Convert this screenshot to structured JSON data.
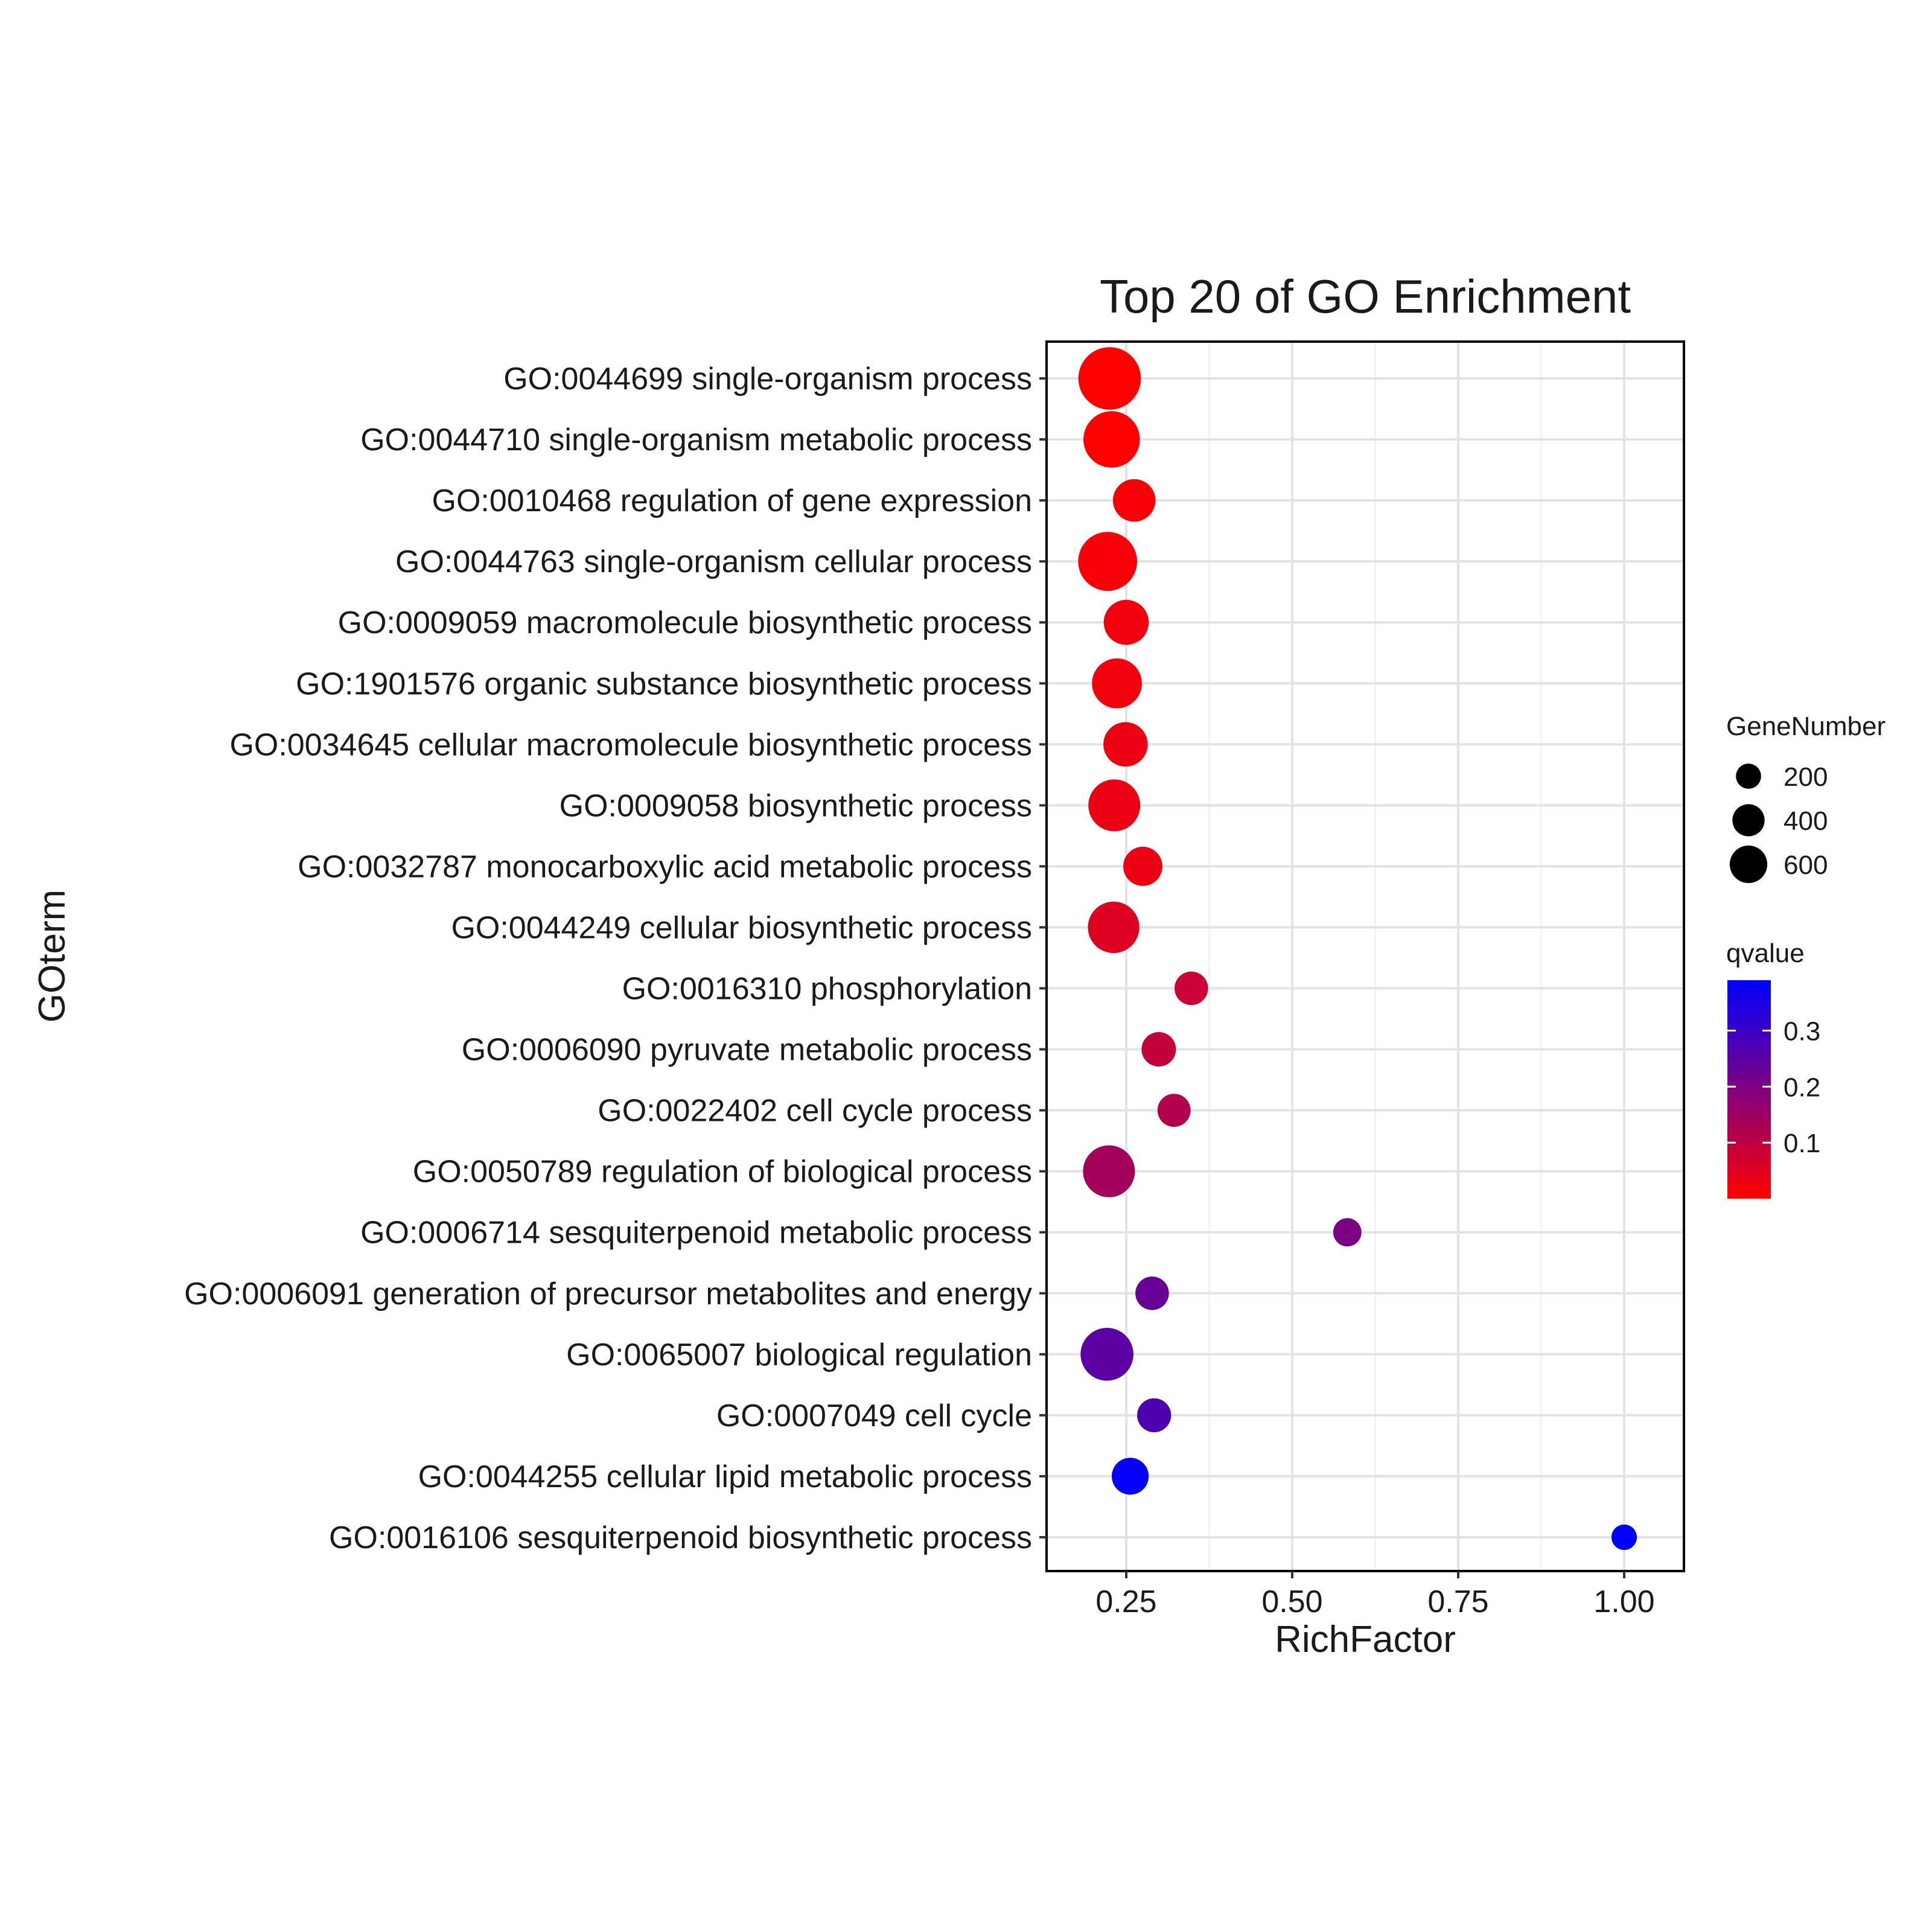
{
  "chart_data": {
    "type": "scatter",
    "title": "Top 20 of GO Enrichment",
    "xlabel": "RichFactor",
    "ylabel": "GOterm",
    "xlim": [
      0.13,
      1.09
    ],
    "xticks": [
      0.25,
      0.5,
      0.75,
      1.0
    ],
    "xtick_labels": [
      "0.25",
      "0.50",
      "0.75",
      "1.00"
    ],
    "grid": true,
    "terms": [
      "GO:0044699 single-organism process",
      "GO:0044710 single-organism metabolic process",
      "GO:0010468 regulation of gene expression",
      "GO:0044763 single-organism cellular process",
      "GO:0009059 macromolecule biosynthetic process",
      "GO:1901576 organic substance biosynthetic process",
      "GO:0034645 cellular macromolecule biosynthetic process",
      "GO:0009058 biosynthetic process",
      "GO:0032787 monocarboxylic acid metabolic process",
      "GO:0044249 cellular biosynthetic process",
      "GO:0016310 phosphorylation",
      "GO:0006090 pyruvate metabolic process",
      "GO:0022402 cell cycle process",
      "GO:0050789 regulation of biological process",
      "GO:0006714 sesquiterpenoid metabolic process",
      "GO:0006091 generation of precursor metabolites and energy",
      "GO:0065007 biological regulation",
      "GO:0007049 cell cycle",
      "GO:0044255 cellular lipid metabolic process",
      "GO:0016106 sesquiterpenoid biosynthetic process"
    ],
    "points": [
      {
        "richFactor": 0.225,
        "geneNumber": 650,
        "qvalue": 0.0
      },
      {
        "richFactor": 0.228,
        "geneNumber": 500,
        "qvalue": 0.0
      },
      {
        "richFactor": 0.262,
        "geneNumber": 230,
        "qvalue": 0.01
      },
      {
        "richFactor": 0.222,
        "geneNumber": 560,
        "qvalue": 0.01
      },
      {
        "richFactor": 0.25,
        "geneNumber": 270,
        "qvalue": 0.02
      },
      {
        "richFactor": 0.236,
        "geneNumber": 360,
        "qvalue": 0.02
      },
      {
        "richFactor": 0.249,
        "geneNumber": 260,
        "qvalue": 0.03
      },
      {
        "richFactor": 0.232,
        "geneNumber": 400,
        "qvalue": 0.03
      },
      {
        "richFactor": 0.275,
        "geneNumber": 180,
        "qvalue": 0.03
      },
      {
        "richFactor": 0.231,
        "geneNumber": 390,
        "qvalue": 0.05
      },
      {
        "richFactor": 0.348,
        "geneNumber": 110,
        "qvalue": 0.08
      },
      {
        "richFactor": 0.299,
        "geneNumber": 120,
        "qvalue": 0.09
      },
      {
        "richFactor": 0.322,
        "geneNumber": 105,
        "qvalue": 0.12
      },
      {
        "richFactor": 0.224,
        "geneNumber": 400,
        "qvalue": 0.14
      },
      {
        "richFactor": 0.583,
        "geneNumber": 60,
        "qvalue": 0.2
      },
      {
        "richFactor": 0.289,
        "geneNumber": 110,
        "qvalue": 0.23
      },
      {
        "richFactor": 0.221,
        "geneNumber": 420,
        "qvalue": 0.25
      },
      {
        "richFactor": 0.292,
        "geneNumber": 115,
        "qvalue": 0.27
      },
      {
        "richFactor": 0.256,
        "geneNumber": 150,
        "qvalue": 0.38
      },
      {
        "richFactor": 1.0,
        "geneNumber": 40,
        "qvalue": 0.39
      }
    ],
    "legend_size": {
      "title": "GeneNumber",
      "entries": [
        {
          "label": "200",
          "value": 200
        },
        {
          "label": "400",
          "value": 400
        },
        {
          "label": "600",
          "value": 600
        }
      ]
    },
    "legend_color": {
      "title": "qvalue",
      "range": [
        0.0,
        0.39
      ],
      "low_color": "#ff0000",
      "high_color": "#0000ff",
      "ticks": [
        {
          "label": "0.3",
          "value": 0.3
        },
        {
          "label": "0.2",
          "value": 0.2
        },
        {
          "label": "0.1",
          "value": 0.1
        }
      ]
    }
  }
}
